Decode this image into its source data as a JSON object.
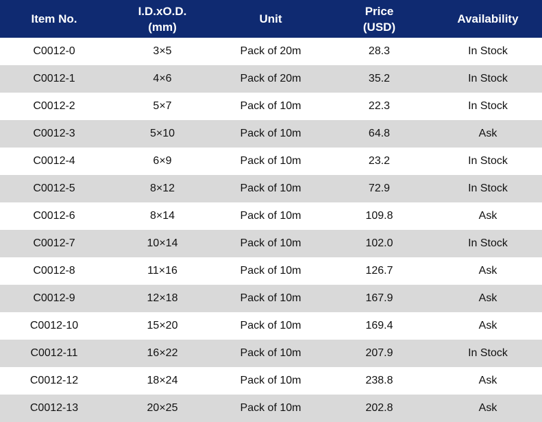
{
  "table": {
    "headers": [
      {
        "lines": [
          "Item No."
        ]
      },
      {
        "lines": [
          "I.D.xO.D.",
          "(mm)"
        ]
      },
      {
        "lines": [
          "Unit"
        ]
      },
      {
        "lines": [
          "Price",
          "(USD)"
        ]
      },
      {
        "lines": [
          "Availability"
        ]
      }
    ],
    "rows": [
      [
        "C0012-0",
        "3×5",
        "Pack of 20m",
        "28.3",
        "In Stock"
      ],
      [
        "C0012-1",
        "4×6",
        "Pack of 20m",
        "35.2",
        "In Stock"
      ],
      [
        "C0012-2",
        "5×7",
        "Pack of 10m",
        "22.3",
        "In Stock"
      ],
      [
        "C0012-3",
        "5×10",
        "Pack of 10m",
        "64.8",
        "Ask"
      ],
      [
        "C0012-4",
        "6×9",
        "Pack of 10m",
        "23.2",
        "In Stock"
      ],
      [
        "C0012-5",
        "8×12",
        "Pack of 10m",
        "72.9",
        "In Stock"
      ],
      [
        "C0012-6",
        "8×14",
        "Pack of 10m",
        "109.8",
        "Ask"
      ],
      [
        "C0012-7",
        "10×14",
        "Pack of 10m",
        "102.0",
        "In Stock"
      ],
      [
        "C0012-8",
        "11×16",
        "Pack of 10m",
        "126.7",
        "Ask"
      ],
      [
        "C0012-9",
        "12×18",
        "Pack of 10m",
        "167.9",
        "Ask"
      ],
      [
        "C0012-10",
        "15×20",
        "Pack of 10m",
        "169.4",
        "Ask"
      ],
      [
        "C0012-11",
        "16×22",
        "Pack of 10m",
        "207.9",
        "In Stock"
      ],
      [
        "C0012-12",
        "18×24",
        "Pack of 10m",
        "238.8",
        "Ask"
      ],
      [
        "C0012-13",
        "20×25",
        "Pack of 10m",
        "202.8",
        "Ask"
      ]
    ]
  },
  "colors": {
    "header_bg": "#0f2a71",
    "header_text": "#ffffff",
    "row_alt_bg": "#d9d9d9",
    "row_bg": "#ffffff"
  }
}
